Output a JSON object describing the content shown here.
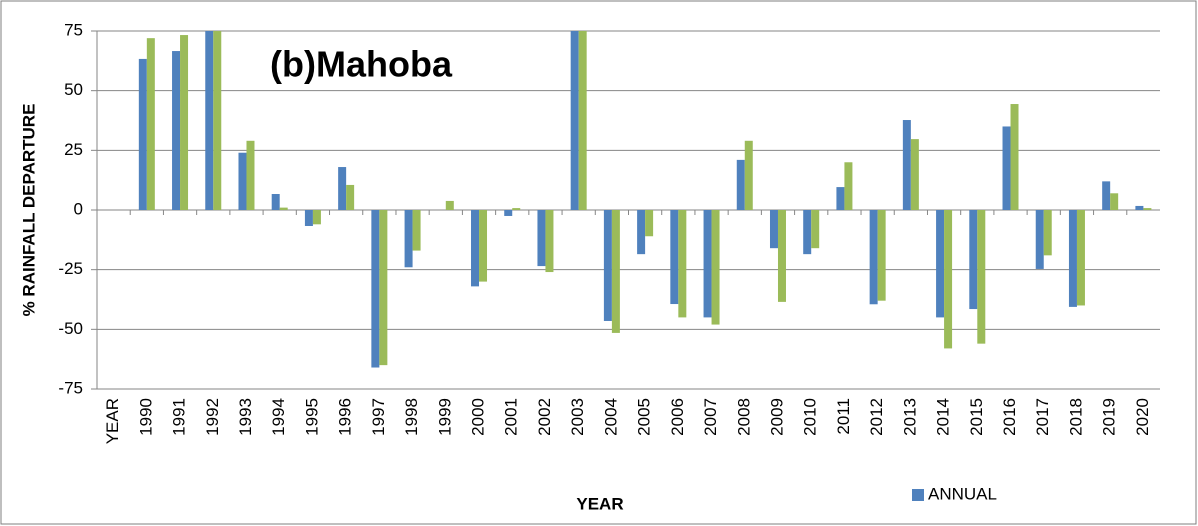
{
  "chart_data": {
    "type": "bar",
    "title": "(b)Mahoba",
    "x_label": "YEAR",
    "y_label": "% RAINFALL DEPARTURE",
    "categories": [
      "YEAR",
      "1990",
      "1991",
      "1992",
      "1993",
      "1994",
      "1995",
      "1996",
      "1997",
      "1998",
      "1999",
      "2000",
      "2001",
      "2002",
      "2003",
      "2004",
      "2005",
      "2006",
      "2007",
      "2008",
      "2009",
      "2010",
      "2011",
      "2012",
      "2013",
      "2014",
      "2015",
      "2016",
      "2017",
      "2018",
      "2019",
      "2020"
    ],
    "series": [
      {
        "name": "ANNUAL",
        "color": "#4f81bd",
        "values": [
          null,
          63.3,
          66.6,
          75,
          24,
          6.7,
          -6.7,
          18,
          -66,
          -24,
          0,
          -32,
          -2.5,
          -23.5,
          75,
          -46.5,
          -18.5,
          -39.4,
          -45,
          21,
          -16,
          -18.5,
          9.6,
          -39.5,
          37.7,
          -45,
          -41.5,
          35,
          -24.7,
          -40.6,
          12,
          1.7
        ]
      },
      {
        "color": "#9bbb59",
        "values": [
          null,
          72,
          73.3,
          75,
          29,
          1,
          -6,
          10.5,
          -65,
          -17,
          3.8,
          -30,
          0.8,
          -26,
          75,
          -51.5,
          -11,
          -45,
          -48,
          29,
          -38.5,
          -16,
          20,
          -38,
          29.7,
          -58,
          -56,
          44.4,
          -19,
          -40,
          7,
          0.8
        ]
      }
    ],
    "ylim": [
      -75,
      75
    ],
    "yticks": [
      -75,
      -50,
      -25,
      0,
      25,
      50,
      75
    ],
    "grid": true,
    "legend": "bottom"
  }
}
